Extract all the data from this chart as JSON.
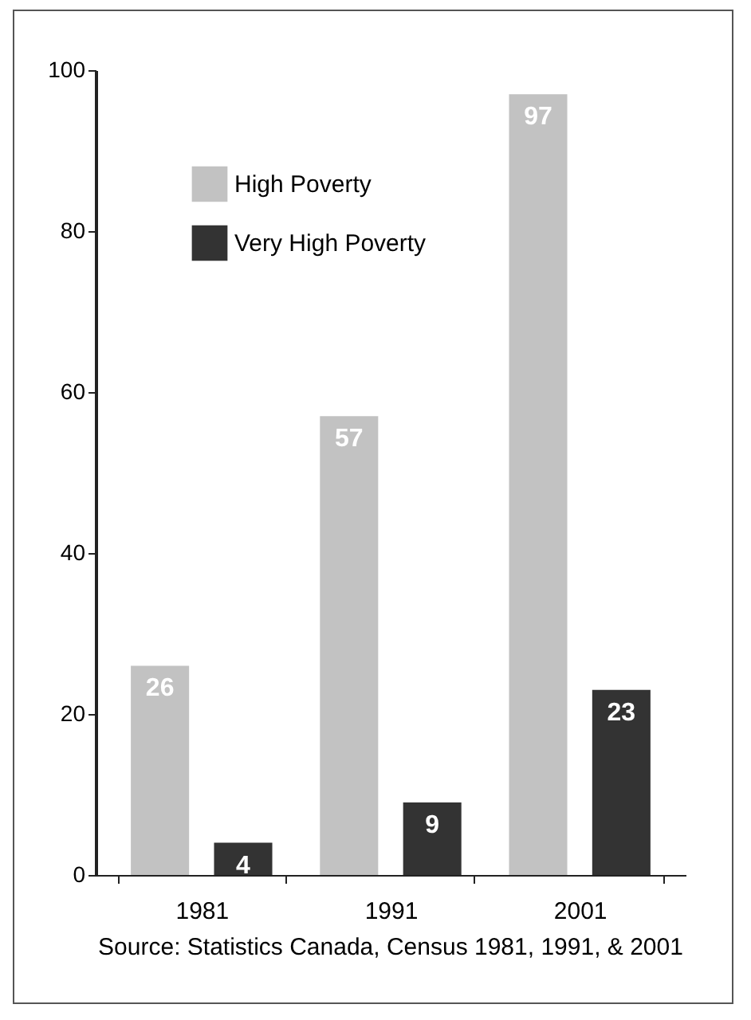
{
  "chart_data": {
    "type": "bar",
    "categories": [
      "1981",
      "1991",
      "2001"
    ],
    "series": [
      {
        "name": "High Poverty",
        "color": "#c2c2c2",
        "values": [
          26,
          57,
          97
        ]
      },
      {
        "name": "Very High Poverty",
        "color": "#333333",
        "values": [
          4,
          9,
          23
        ]
      }
    ],
    "ylim": [
      0,
      100
    ],
    "yticks": [
      0,
      20,
      40,
      60,
      80,
      100
    ],
    "grid": false,
    "legend": "top left",
    "data_labels": true,
    "annotations": [
      "Source: Statistics Canada, Census 1981, 1991, & 2001"
    ]
  }
}
